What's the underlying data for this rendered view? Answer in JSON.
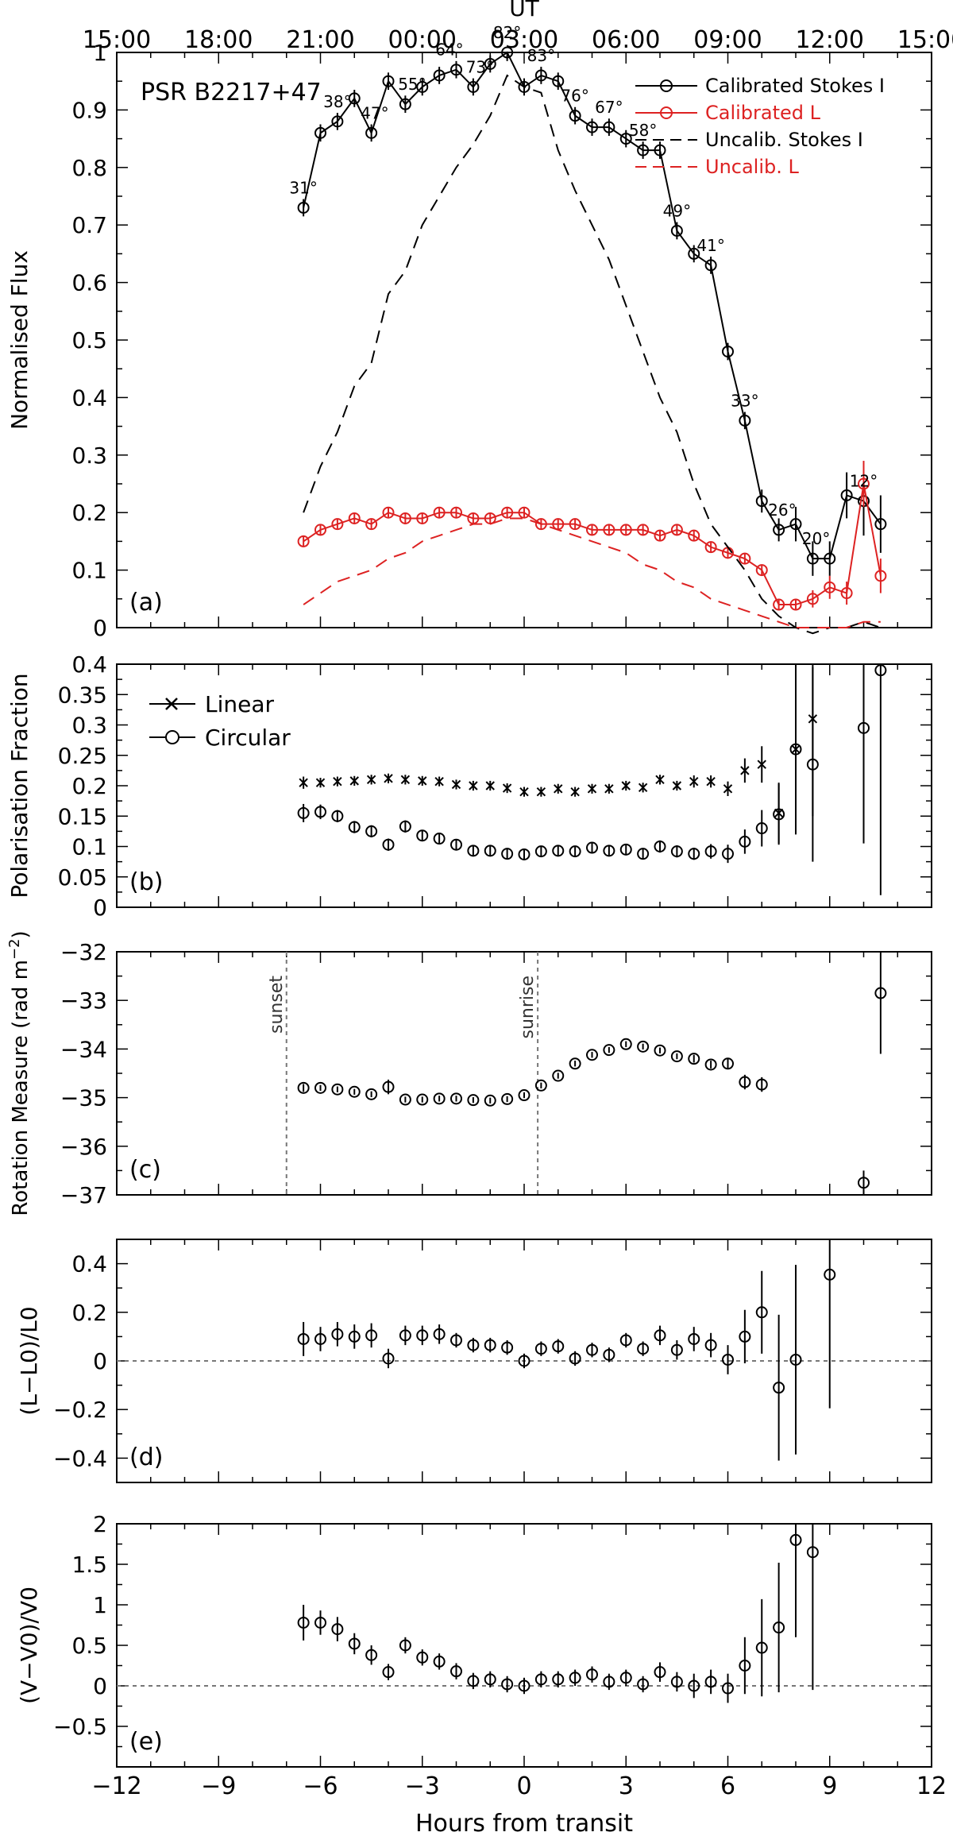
{
  "chart_data": [
    {
      "panel": "(a)",
      "type": "line",
      "annotation": "PSR B2217+47",
      "top_axis_label": "UT",
      "top_ticks": [
        "15:00",
        "18:00",
        "21:00",
        "00:00",
        "03:00",
        "06:00",
        "09:00",
        "12:00",
        "15:00"
      ],
      "ylabel": "Normalised Flux",
      "ylim": [
        0,
        1.0
      ],
      "yticks": [
        "0",
        "0.1",
        "0.2",
        "0.3",
        "0.4",
        "0.5",
        "0.6",
        "0.7",
        "0.8",
        "0.9",
        "1"
      ],
      "xlim": [
        -12,
        12
      ],
      "legend": {
        "position": "top-right",
        "entries": [
          "Calibrated Stokes I",
          "Calibrated L",
          "Uncalib. Stokes I",
          "Uncalib. L"
        ]
      },
      "elevation_labels": [
        {
          "x": -6.5,
          "text": "31°"
        },
        {
          "x": -5.5,
          "text": "38°"
        },
        {
          "x": -4.4,
          "text": "47°"
        },
        {
          "x": -3.3,
          "text": "55°"
        },
        {
          "x": -2.2,
          "text": "64°"
        },
        {
          "x": -1.3,
          "text": "73°"
        },
        {
          "x": -0.5,
          "text": "82°"
        },
        {
          "x": 0.5,
          "text": "83°"
        },
        {
          "x": 1.5,
          "text": "76°"
        },
        {
          "x": 2.5,
          "text": "67°"
        },
        {
          "x": 3.5,
          "text": "58°"
        },
        {
          "x": 4.5,
          "text": "49°"
        },
        {
          "x": 5.5,
          "text": "41°"
        },
        {
          "x": 6.5,
          "text": "33°"
        },
        {
          "x": 7.6,
          "text": "26°"
        },
        {
          "x": 8.6,
          "text": "20°"
        },
        {
          "x": 10.0,
          "text": "12°"
        }
      ],
      "series": [
        {
          "name": "Calibrated Stokes I",
          "color": "#000000",
          "x": [
            -6.5,
            -6,
            -5.5,
            -5,
            -4.5,
            -4,
            -3.5,
            -3,
            -2.5,
            -2,
            -1.5,
            -1,
            -0.5,
            0,
            0.5,
            1,
            1.5,
            2,
            2.5,
            3,
            3.5,
            4,
            4.5,
            5,
            5.5,
            6,
            6.5,
            7,
            7.5,
            8,
            8.5,
            9,
            9.5,
            10,
            10.5
          ],
          "y": [
            0.73,
            0.86,
            0.88,
            0.92,
            0.86,
            0.95,
            0.91,
            0.94,
            0.96,
            0.97,
            0.94,
            0.98,
            1.0,
            0.94,
            0.96,
            0.95,
            0.89,
            0.87,
            0.87,
            0.85,
            0.83,
            0.83,
            0.69,
            0.65,
            0.63,
            0.48,
            0.36,
            0.22,
            0.17,
            0.18,
            0.12,
            0.12,
            0.23,
            0.22,
            0.18
          ],
          "yerr": [
            0.015,
            0.015,
            0.015,
            0.015,
            0.015,
            0.015,
            0.015,
            0.015,
            0.015,
            0.015,
            0.015,
            0.015,
            0.015,
            0.015,
            0.015,
            0.015,
            0.015,
            0.015,
            0.015,
            0.015,
            0.015,
            0.015,
            0.015,
            0.015,
            0.015,
            0.015,
            0.015,
            0.02,
            0.02,
            0.03,
            0.03,
            0.03,
            0.04,
            0.06,
            0.05
          ]
        },
        {
          "name": "Calibrated L",
          "color": "#dd2222",
          "x": [
            -6.5,
            -6,
            -5.5,
            -5,
            -4.5,
            -4,
            -3.5,
            -3,
            -2.5,
            -2,
            -1.5,
            -1,
            -0.5,
            0,
            0.5,
            1,
            1.5,
            2,
            2.5,
            3,
            3.5,
            4,
            4.5,
            5,
            5.5,
            6,
            6.5,
            7,
            7.5,
            8,
            8.5,
            9,
            9.5,
            10,
            10.5
          ],
          "y": [
            0.15,
            0.17,
            0.18,
            0.19,
            0.18,
            0.2,
            0.19,
            0.19,
            0.2,
            0.2,
            0.19,
            0.19,
            0.2,
            0.2,
            0.18,
            0.18,
            0.18,
            0.17,
            0.17,
            0.17,
            0.17,
            0.16,
            0.17,
            0.16,
            0.14,
            0.13,
            0.12,
            0.1,
            0.04,
            0.04,
            0.05,
            0.07,
            0.06,
            0.25,
            0.09
          ],
          "yerr": [
            0.01,
            0.01,
            0.01,
            0.01,
            0.01,
            0.01,
            0.01,
            0.01,
            0.01,
            0.01,
            0.01,
            0.01,
            0.01,
            0.01,
            0.01,
            0.01,
            0.01,
            0.01,
            0.01,
            0.01,
            0.01,
            0.01,
            0.01,
            0.01,
            0.01,
            0.01,
            0.01,
            0.01,
            0.01,
            0.01,
            0.015,
            0.02,
            0.02,
            0.04,
            0.03
          ]
        },
        {
          "name": "Uncalib. Stokes I",
          "color": "#000000",
          "dashed": true,
          "x": [
            -6.5,
            -6,
            -5.5,
            -5,
            -4.5,
            -4,
            -3.5,
            -3,
            -2.5,
            -2,
            -1.5,
            -1,
            -0.5,
            0,
            0.5,
            1,
            1.5,
            2,
            2.5,
            3,
            3.5,
            4,
            4.5,
            5,
            5.5,
            6,
            6.5,
            7,
            7.5,
            8,
            8.5,
            9,
            9.5,
            10,
            10.5
          ],
          "y": [
            0.2,
            0.28,
            0.34,
            0.42,
            0.46,
            0.58,
            0.62,
            0.7,
            0.75,
            0.8,
            0.84,
            0.89,
            0.96,
            0.94,
            0.93,
            0.83,
            0.76,
            0.7,
            0.64,
            0.56,
            0.48,
            0.4,
            0.34,
            0.25,
            0.18,
            0.14,
            0.1,
            0.05,
            0.02,
            0.0,
            -0.01,
            0.0,
            0.0,
            0.01,
            0.0
          ]
        },
        {
          "name": "Uncalib. L",
          "color": "#dd2222",
          "dashed": true,
          "x": [
            -6.5,
            -6,
            -5.5,
            -5,
            -4.5,
            -4,
            -3.5,
            -3,
            -2.5,
            -2,
            -1.5,
            -1,
            -0.5,
            0,
            0.5,
            1,
            1.5,
            2,
            2.5,
            3,
            3.5,
            4,
            4.5,
            5,
            5.5,
            6,
            6.5,
            7,
            7.5,
            8,
            8.5,
            9,
            9.5,
            10,
            10.5
          ],
          "y": [
            0.04,
            0.06,
            0.08,
            0.09,
            0.1,
            0.12,
            0.13,
            0.15,
            0.16,
            0.17,
            0.18,
            0.18,
            0.19,
            0.19,
            0.18,
            0.17,
            0.16,
            0.15,
            0.14,
            0.13,
            0.11,
            0.1,
            0.08,
            0.07,
            0.05,
            0.04,
            0.03,
            0.02,
            0.01,
            0.0,
            0.0,
            0.0,
            0.0,
            0.01,
            0.01
          ]
        }
      ]
    },
    {
      "panel": "(b)",
      "type": "scatter",
      "ylabel": "Polarisation Fraction",
      "ylim": [
        0,
        0.4
      ],
      "yticks": [
        "0",
        "0.05",
        "0.1",
        "0.15",
        "0.2",
        "0.25",
        "0.3",
        "0.35",
        "0.4"
      ],
      "xlim": [
        -12,
        12
      ],
      "legend": {
        "position": "top-left",
        "entries": [
          "Linear",
          "Circular"
        ]
      },
      "series": [
        {
          "name": "Linear",
          "marker": "x",
          "x": [
            -6.5,
            -6,
            -5.5,
            -5,
            -4.5,
            -4,
            -3.5,
            -3,
            -2.5,
            -2,
            -1.5,
            -1,
            -0.5,
            0,
            0.5,
            1,
            1.5,
            2,
            2.5,
            3,
            3.5,
            4,
            4.5,
            5,
            5.5,
            6,
            6.5,
            7,
            7.5,
            8,
            8.5
          ],
          "y": [
            0.205,
            0.205,
            0.207,
            0.208,
            0.21,
            0.212,
            0.21,
            0.208,
            0.207,
            0.202,
            0.2,
            0.2,
            0.196,
            0.19,
            0.19,
            0.195,
            0.19,
            0.195,
            0.195,
            0.2,
            0.197,
            0.21,
            0.2,
            0.207,
            0.207,
            0.195,
            0.225,
            0.235,
            0.155,
            0.26,
            0.31
          ],
          "yerr": [
            0.01,
            0.008,
            0.008,
            0.008,
            0.008,
            0.008,
            0.008,
            0.008,
            0.008,
            0.008,
            0.008,
            0.008,
            0.008,
            0.008,
            0.008,
            0.008,
            0.008,
            0.008,
            0.008,
            0.008,
            0.008,
            0.008,
            0.008,
            0.01,
            0.01,
            0.012,
            0.02,
            0.03,
            0.05,
            0.14,
            0.16
          ]
        },
        {
          "name": "Circular",
          "marker": "o",
          "x": [
            -6.5,
            -6,
            -5.5,
            -5,
            -4.5,
            -4,
            -3.5,
            -3,
            -2.5,
            -2,
            -1.5,
            -1,
            -0.5,
            0,
            0.5,
            1,
            1.5,
            2,
            2.5,
            3,
            3.5,
            4,
            4.5,
            5,
            5.5,
            6,
            6.5,
            7,
            7.5,
            8,
            8.5,
            10,
            10.5
          ],
          "y": [
            0.155,
            0.157,
            0.15,
            0.132,
            0.125,
            0.103,
            0.133,
            0.118,
            0.113,
            0.103,
            0.093,
            0.093,
            0.088,
            0.087,
            0.092,
            0.093,
            0.092,
            0.098,
            0.093,
            0.095,
            0.088,
            0.1,
            0.092,
            0.088,
            0.092,
            0.088,
            0.108,
            0.13,
            0.153,
            0.26,
            0.235,
            0.295,
            0.39
          ],
          "yerr": [
            0.015,
            0.012,
            0.01,
            0.01,
            0.01,
            0.01,
            0.01,
            0.008,
            0.008,
            0.008,
            0.008,
            0.008,
            0.008,
            0.008,
            0.008,
            0.008,
            0.008,
            0.008,
            0.008,
            0.008,
            0.008,
            0.01,
            0.01,
            0.01,
            0.012,
            0.015,
            0.02,
            0.03,
            0.05,
            0.14,
            0.16,
            0.19,
            0.37
          ]
        }
      ]
    },
    {
      "panel": "(c)",
      "type": "scatter",
      "ylabel": "Rotation Measure (rad m^-2)",
      "ylabel_main": "Rotation Measure (rad m",
      "ylabel_exp": "−2",
      "ylabel_close": ")",
      "ylim": [
        -37,
        -32
      ],
      "yticks": [
        "−37",
        "−36",
        "−35",
        "−34",
        "−33",
        "−32"
      ],
      "xlim": [
        -12,
        12
      ],
      "vlines": [
        {
          "x": -7.0,
          "label": "sunset"
        },
        {
          "x": 0.4,
          "label": "sunrise"
        }
      ],
      "series": [
        {
          "name": "RM",
          "marker": "o",
          "x": [
            -6.5,
            -6,
            -5.5,
            -5,
            -4.5,
            -4,
            -3.5,
            -3,
            -2.5,
            -2,
            -1.5,
            -1,
            -0.5,
            0,
            0.5,
            1,
            1.5,
            2,
            2.5,
            3,
            3.5,
            4,
            4.5,
            5,
            5.5,
            6,
            6.5,
            7,
            10,
            10.5
          ],
          "y": [
            -34.8,
            -34.8,
            -34.83,
            -34.88,
            -34.93,
            -34.78,
            -35.04,
            -35.04,
            -35.02,
            -35.02,
            -35.05,
            -35.06,
            -35.03,
            -34.95,
            -34.75,
            -34.55,
            -34.3,
            -34.12,
            -34.02,
            -33.9,
            -33.95,
            -34.03,
            -34.15,
            -34.2,
            -34.32,
            -34.3,
            -34.68,
            -34.73,
            -36.75,
            -32.85
          ],
          "yerr": [
            0.08,
            0.06,
            0.06,
            0.06,
            0.06,
            0.15,
            0.06,
            0.06,
            0.06,
            0.06,
            0.06,
            0.06,
            0.06,
            0.06,
            0.06,
            0.06,
            0.06,
            0.06,
            0.06,
            0.06,
            0.06,
            0.06,
            0.06,
            0.08,
            0.08,
            0.1,
            0.15,
            0.15,
            0.25,
            1.25
          ]
        }
      ]
    },
    {
      "panel": "(d)",
      "type": "scatter",
      "ylabel": "(L−L0)/L0",
      "ylim": [
        -0.5,
        0.5
      ],
      "yticks": [
        "−0.4",
        "−0.2",
        "0",
        "0.2",
        "0.4"
      ],
      "xlim": [
        -12,
        12
      ],
      "hline": 0,
      "series": [
        {
          "name": "L",
          "marker": "o",
          "x": [
            -6.5,
            -6,
            -5.5,
            -5,
            -4.5,
            -4,
            -3.5,
            -3,
            -2.5,
            -2,
            -1.5,
            -1,
            -0.5,
            0,
            0.5,
            1,
            1.5,
            2,
            2.5,
            3,
            3.5,
            4,
            4.5,
            5,
            5.5,
            6,
            6.5,
            7,
            7.5,
            8,
            9
          ],
          "y": [
            0.09,
            0.09,
            0.11,
            0.1,
            0.105,
            0.01,
            0.105,
            0.105,
            0.11,
            0.085,
            0.065,
            0.065,
            0.055,
            0.0,
            0.05,
            0.06,
            0.01,
            0.045,
            0.025,
            0.085,
            0.05,
            0.105,
            0.045,
            0.09,
            0.065,
            0.005,
            0.1,
            0.2,
            -0.11,
            0.005,
            0.355
          ],
          "yerr": [
            0.07,
            0.05,
            0.05,
            0.05,
            0.05,
            0.04,
            0.04,
            0.04,
            0.04,
            0.03,
            0.03,
            0.03,
            0.03,
            0.03,
            0.03,
            0.03,
            0.03,
            0.03,
            0.03,
            0.03,
            0.03,
            0.04,
            0.04,
            0.05,
            0.05,
            0.06,
            0.11,
            0.17,
            0.3,
            0.39,
            0.55
          ]
        }
      ]
    },
    {
      "panel": "(e)",
      "type": "scatter",
      "ylabel": "(V−V0)/V0",
      "ylim": [
        -1,
        2
      ],
      "yticks": [
        "−0.5",
        "0",
        "0.5",
        "1",
        "1.5",
        "2"
      ],
      "xlim": [
        -12,
        12
      ],
      "xticks": [
        "−12",
        "−9",
        "−6",
        "−3",
        "0",
        "3",
        "6",
        "9",
        "12"
      ],
      "xlabel": "Hours from transit",
      "hline": 0,
      "series": [
        {
          "name": "V",
          "marker": "o",
          "x": [
            -6.5,
            -6,
            -5.5,
            -5,
            -4.5,
            -4,
            -3.5,
            -3,
            -2.5,
            -2,
            -1.5,
            -1,
            -0.5,
            0,
            0.5,
            1,
            1.5,
            2,
            2.5,
            3,
            3.5,
            4,
            4.5,
            5,
            5.5,
            6,
            6.5,
            7,
            7.5,
            8,
            8.5
          ],
          "y": [
            0.78,
            0.78,
            0.7,
            0.52,
            0.38,
            0.17,
            0.5,
            0.35,
            0.3,
            0.18,
            0.06,
            0.08,
            0.02,
            0.0,
            0.08,
            0.08,
            0.1,
            0.14,
            0.05,
            0.1,
            0.02,
            0.17,
            0.05,
            0.0,
            0.05,
            -0.03,
            0.25,
            0.47,
            0.72,
            1.8,
            1.65
          ],
          "yerr": [
            0.22,
            0.15,
            0.15,
            0.13,
            0.12,
            0.1,
            0.1,
            0.1,
            0.1,
            0.1,
            0.1,
            0.1,
            0.1,
            0.1,
            0.1,
            0.1,
            0.1,
            0.1,
            0.1,
            0.1,
            0.1,
            0.12,
            0.12,
            0.15,
            0.15,
            0.18,
            0.35,
            0.6,
            0.8,
            1.2,
            1.7
          ]
        }
      ]
    }
  ]
}
